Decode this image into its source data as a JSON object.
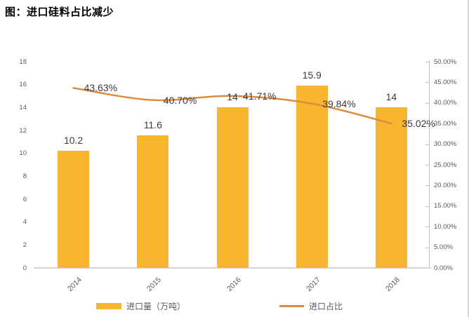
{
  "title": "图：进口硅料占比减少",
  "chart_data": {
    "type": "bar+line combo",
    "categories": [
      "2014",
      "2015",
      "2016",
      "2017",
      "2018"
    ],
    "series": [
      {
        "name": "进口量（万吨）",
        "type": "bar",
        "axis": "left",
        "values": [
          10.2,
          11.6,
          14,
          15.9,
          14
        ],
        "labels": [
          "10.2",
          "11.6",
          "14",
          "15.9",
          "14"
        ],
        "color": "#F8B52F"
      },
      {
        "name": "进口占比",
        "type": "line",
        "axis": "right",
        "values": [
          43.63,
          40.7,
          41.71,
          39.84,
          35.02
        ],
        "labels": [
          "43.63%",
          "40.70%",
          "41.71%",
          "39.84%",
          "35.02%"
        ],
        "color": "#DB8C3F"
      }
    ],
    "left_axis": {
      "min": 0,
      "max": 18,
      "step": 2,
      "ticks": [
        "0",
        "2",
        "4",
        "6",
        "8",
        "10",
        "12",
        "14",
        "16",
        "18"
      ]
    },
    "right_axis": {
      "min": 0,
      "max": 50,
      "step": 5,
      "ticks": [
        "0.00%",
        "5.00%",
        "10.00%",
        "15.00%",
        "20.00%",
        "25.00%",
        "30.00%",
        "35.00%",
        "40.00%",
        "45.00%",
        "50.00%"
      ]
    },
    "legend": [
      {
        "label": "进口量（万吨）",
        "swatch": "bar",
        "color": "#F8B52F"
      },
      {
        "label": "进口占比",
        "swatch": "line",
        "color": "#DB8C3F"
      }
    ],
    "grid": false,
    "legend_position": "bottom"
  }
}
